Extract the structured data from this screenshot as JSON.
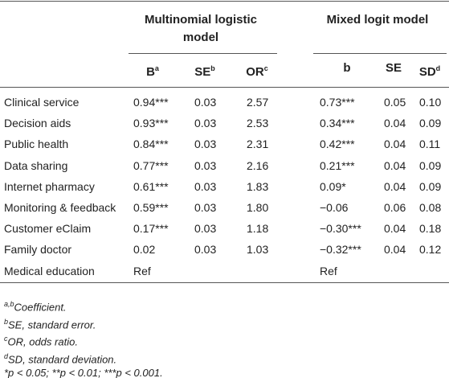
{
  "table": {
    "groups": [
      {
        "title": "Multinomial logistic model"
      },
      {
        "title": "Mixed logit model"
      }
    ],
    "columns": [
      {
        "text": "B",
        "sup": "a"
      },
      {
        "text": "SE",
        "sup": "b"
      },
      {
        "text": "OR",
        "sup": "c"
      },
      {
        "text": "b"
      },
      {
        "text": "SE"
      },
      {
        "text": "SD",
        "sup": "d"
      }
    ],
    "rows": [
      [
        "Clinical service",
        "0.94***",
        "0.03",
        "2.57",
        "0.73***",
        "0.05",
        "0.10"
      ],
      [
        "Decision aids",
        "0.93***",
        "0.03",
        "2.53",
        "0.34***",
        "0.04",
        "0.09"
      ],
      [
        "Public health",
        "0.84***",
        "0.03",
        "2.31",
        "0.42***",
        "0.04",
        "0.11"
      ],
      [
        "Data sharing",
        "0.77***",
        "0.03",
        "2.16",
        "0.21***",
        "0.04",
        "0.09"
      ],
      [
        "Internet pharmacy",
        "0.61***",
        "0.03",
        "1.83",
        "0.09*",
        "0.04",
        "0.09"
      ],
      [
        "Monitoring & feedback",
        "0.59***",
        "0.03",
        "1.80",
        "−0.06",
        "0.06",
        "0.08"
      ],
      [
        "Customer eClaim",
        "0.17***",
        "0.03",
        "1.18",
        "−0.30***",
        "0.04",
        "0.18"
      ],
      [
        "Family doctor",
        "0.02",
        "0.03",
        "1.03",
        "−0.32***",
        "0.04",
        "0.12"
      ],
      [
        "Medical education",
        "Ref",
        null,
        null,
        "Ref",
        null,
        null
      ]
    ],
    "footnotes": [
      {
        "mark": "a,b",
        "text": "Coefficient."
      },
      {
        "mark": "b",
        "text": "SE, standard error."
      },
      {
        "mark": "c",
        "text": "OR, odds ratio."
      },
      {
        "mark": "d",
        "text": "SD, standard deviation."
      },
      {
        "text": "*p < 0.05; **p < 0.01; ***p < 0.001."
      }
    ]
  }
}
